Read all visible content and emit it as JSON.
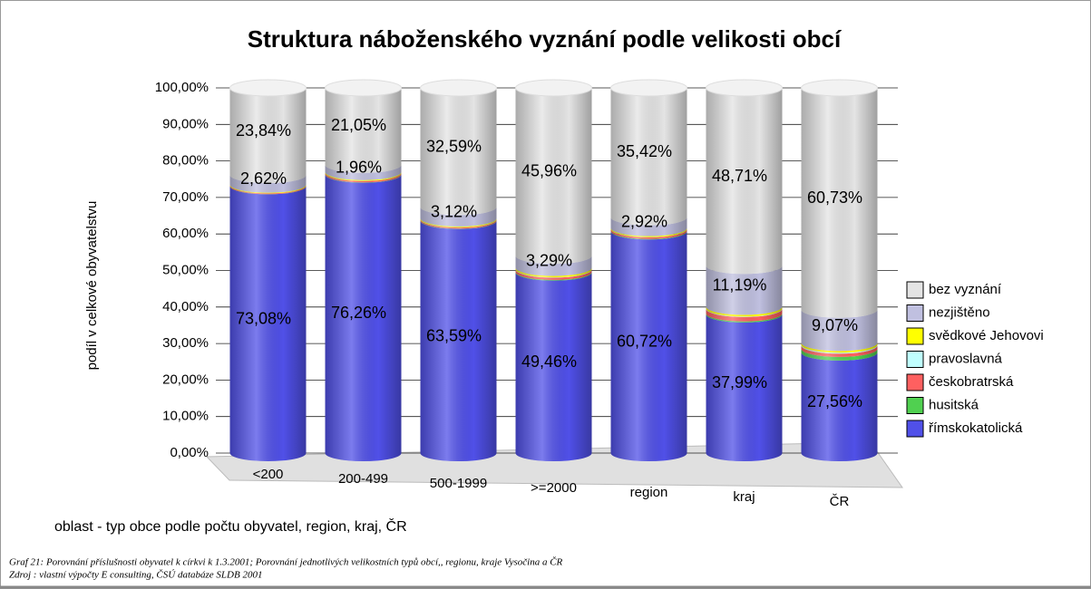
{
  "chart_data": {
    "type": "bar3d-stacked",
    "title": "Struktura náboženského vyznání podle velikosti obcí",
    "y_label": "podíl v celkové obyvatelstvu",
    "x_label": "oblast - typ obce podle počtu obyvatel, region, kraj, ČR",
    "caption": "Graf 21: Porovnání příslušnosti obyvatel k církvi k 1.3.2001; Porovnání jednotlivých velikostních typů obcí,, regionu, kraje Vysočina a ČR",
    "source": "Zdroj : vlastní výpočty E consulting, ČSÚ databáze SLDB 2001",
    "categories": [
      "<200",
      "200-499",
      "500-1999",
      ">=2000",
      "region",
      "kraj",
      "ČR"
    ],
    "ylim": [
      0,
      100
    ],
    "yticks": [
      {
        "value": 0,
        "label": "0,00%"
      },
      {
        "value": 10,
        "label": "10,00%"
      },
      {
        "value": 20,
        "label": "20,00%"
      },
      {
        "value": 30,
        "label": "30,00%"
      },
      {
        "value": 40,
        "label": "40,00%"
      },
      {
        "value": 50,
        "label": "50,00%"
      },
      {
        "value": 60,
        "label": "60,00%"
      },
      {
        "value": 70,
        "label": "70,00%"
      },
      {
        "value": 80,
        "label": "80,00%"
      },
      {
        "value": 90,
        "label": "90,00%"
      },
      {
        "value": 100,
        "label": "100,00%"
      }
    ],
    "grid": true,
    "legend": "right",
    "series": [
      {
        "name": "římskokatolická",
        "color": "#5050e8",
        "values": [
          73.08,
          76.26,
          63.59,
          49.46,
          60.72,
          37.99,
          27.56
        ],
        "value_labels": [
          "73,08%",
          "76,26%",
          "63,59%",
          "49,46%",
          "60,72%",
          "37,99%",
          "27,56%"
        ]
      },
      {
        "name": "husitská",
        "color": "#50d050",
        "values": [
          0.05,
          0.1,
          0.1,
          0.2,
          0.15,
          0.3,
          1.0
        ]
      },
      {
        "name": "českobratrská",
        "color": "#ff6060",
        "values": [
          0.2,
          0.35,
          0.3,
          0.6,
          0.45,
          1.2,
          0.9
        ]
      },
      {
        "name": "pravoslavná",
        "color": "#c0ffff",
        "values": [
          0.01,
          0.03,
          0.05,
          0.09,
          0.04,
          0.11,
          0.24
        ]
      },
      {
        "name": "svědkové Jehovovi",
        "color": "#ffff00",
        "values": [
          0.2,
          0.25,
          0.25,
          0.4,
          0.3,
          0.5,
          0.5
        ]
      },
      {
        "name": "nezjištěno",
        "color": "#c0c0e0",
        "values": [
          2.62,
          1.96,
          3.12,
          3.29,
          2.92,
          11.19,
          9.07
        ],
        "value_labels": [
          "2,62%",
          "1,96%",
          "3,12%",
          "3,29%",
          "2,92%",
          "11,19%",
          "9,07%"
        ]
      },
      {
        "name": "bez vyznání",
        "color": "#e4e4e4",
        "values": [
          23.84,
          21.05,
          32.59,
          45.96,
          35.42,
          48.71,
          60.73
        ],
        "value_labels": [
          "23,84%",
          "21,05%",
          "32,59%",
          "45,96%",
          "35,42%",
          "48,71%",
          "60,73%"
        ]
      }
    ]
  }
}
